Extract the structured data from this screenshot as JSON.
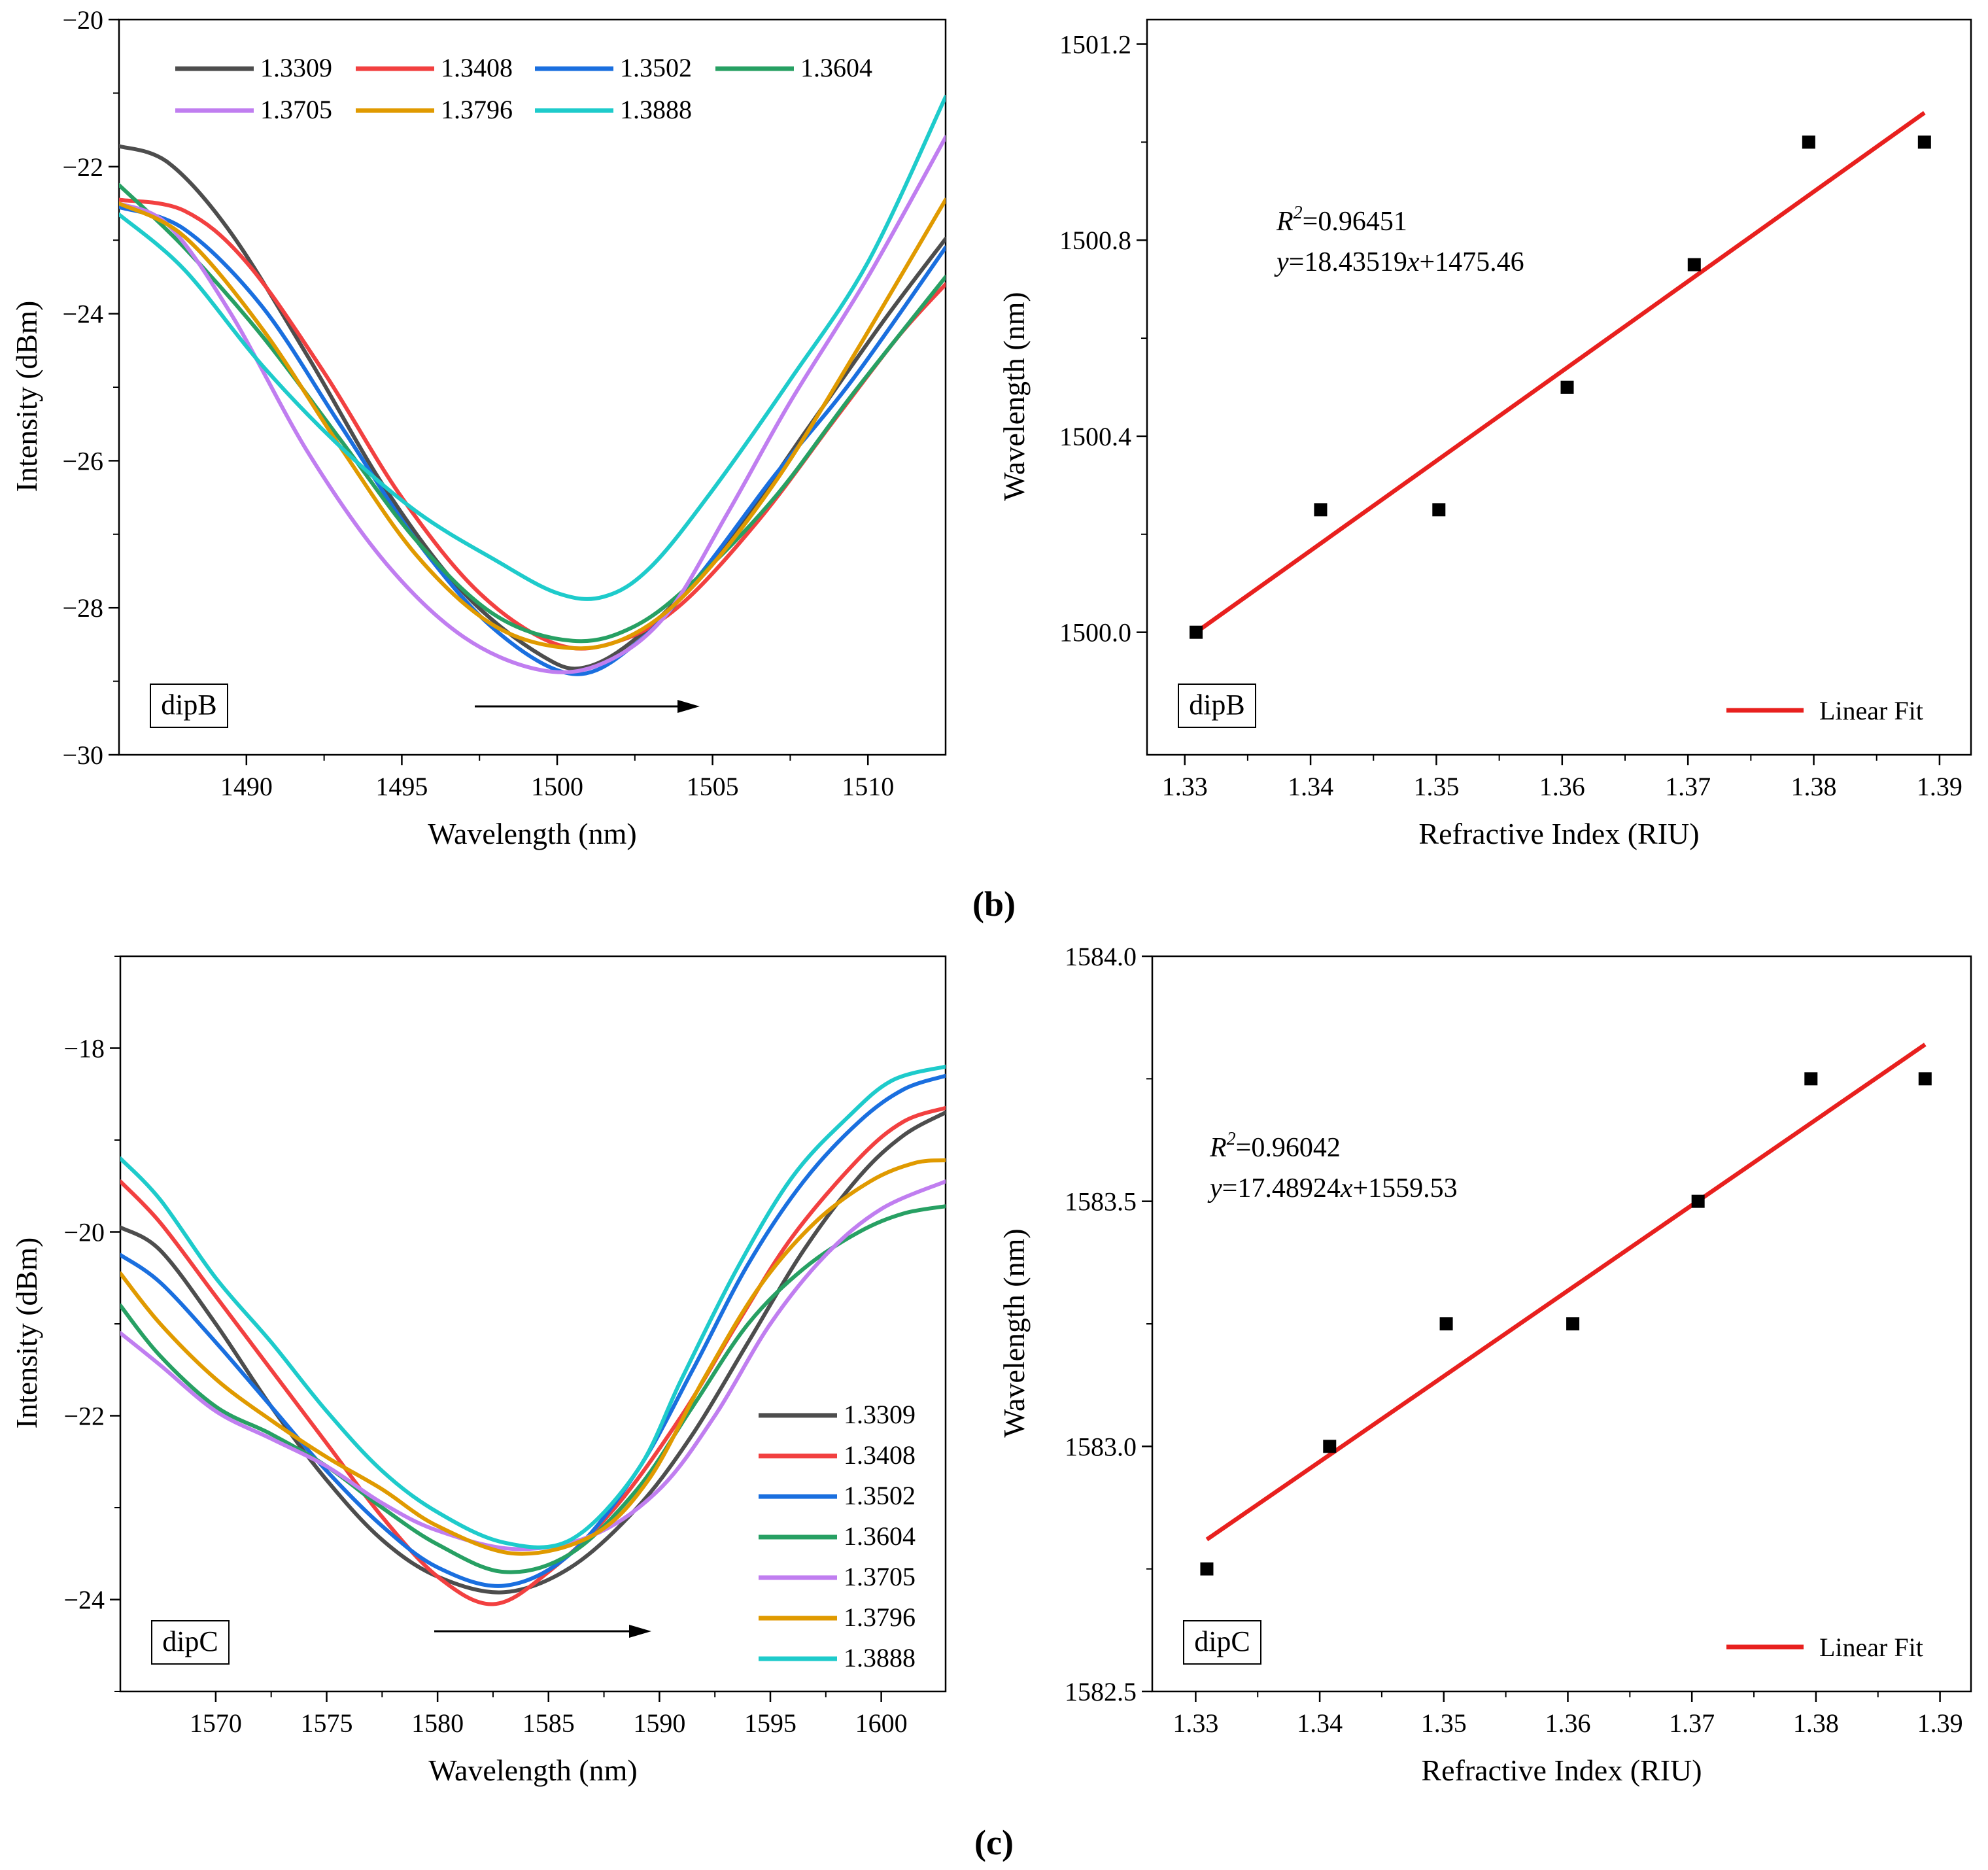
{
  "figure": {
    "captions": {
      "b": "(b)",
      "c": "(c)"
    }
  },
  "colors": {
    "1.3309": "#4d4d4d",
    "1.3408": "#f24040",
    "1.3502": "#1a6fdf",
    "1.3604": "#27a063",
    "1.3705": "#c07ef0",
    "1.3796": "#e09a00",
    "1.3888": "#1ecbcb",
    "fit": "#e8201e",
    "points": "#000000"
  },
  "chart_data": [
    {
      "id": "b-left",
      "type": "line",
      "title": "",
      "xlabel": "Wavelength (nm)",
      "ylabel": "Intensity (dBm)",
      "xlim": [
        1485.9,
        1512.5
      ],
      "ylim": [
        -30,
        -20
      ],
      "xticks": [
        1490,
        1495,
        1500,
        1505,
        1510
      ],
      "yticks": [
        -30,
        -28,
        -26,
        -24,
        -22,
        -20
      ],
      "tag": "dipB",
      "legend_position": "top",
      "series": [
        {
          "name": "1.3309",
          "points": [
            [
              1485.9,
              -21.72
            ],
            [
              1487.5,
              -21.95
            ],
            [
              1489.5,
              -22.9
            ],
            [
              1492,
              -24.6
            ],
            [
              1494.5,
              -26.4
            ],
            [
              1497,
              -27.8
            ],
            [
              1499.5,
              -28.65
            ],
            [
              1501,
              -28.8
            ],
            [
              1503,
              -28.25
            ],
            [
              1505.5,
              -27.1
            ],
            [
              1508,
              -25.6
            ],
            [
              1510.5,
              -24.1
            ],
            [
              1512.5,
              -22.98
            ]
          ]
        },
        {
          "name": "1.3408",
          "points": [
            [
              1485.9,
              -22.45
            ],
            [
              1488,
              -22.6
            ],
            [
              1490,
              -23.3
            ],
            [
              1492.5,
              -24.8
            ],
            [
              1495,
              -26.5
            ],
            [
              1497.5,
              -27.8
            ],
            [
              1500,
              -28.5
            ],
            [
              1502,
              -28.45
            ],
            [
              1504,
              -27.95
            ],
            [
              1506.5,
              -26.8
            ],
            [
              1509,
              -25.4
            ],
            [
              1511,
              -24.3
            ],
            [
              1512.5,
              -23.6
            ]
          ]
        },
        {
          "name": "1.3502",
          "points": [
            [
              1485.9,
              -22.55
            ],
            [
              1488,
              -22.85
            ],
            [
              1490.5,
              -23.9
            ],
            [
              1493,
              -25.5
            ],
            [
              1495.5,
              -27.1
            ],
            [
              1498,
              -28.3
            ],
            [
              1500.5,
              -28.9
            ],
            [
              1502.5,
              -28.5
            ],
            [
              1504.5,
              -27.6
            ],
            [
              1507,
              -26.2
            ],
            [
              1509.5,
              -24.9
            ],
            [
              1512.5,
              -23.1
            ]
          ]
        },
        {
          "name": "1.3604",
          "points": [
            [
              1485.9,
              -22.25
            ],
            [
              1488,
              -23.1
            ],
            [
              1490.5,
              -24.3
            ],
            [
              1493,
              -25.7
            ],
            [
              1495.5,
              -27.1
            ],
            [
              1498,
              -28.1
            ],
            [
              1500.5,
              -28.45
            ],
            [
              1502.5,
              -28.25
            ],
            [
              1504.5,
              -27.6
            ],
            [
              1507,
              -26.5
            ],
            [
              1509.5,
              -25.1
            ],
            [
              1512.5,
              -23.5
            ]
          ]
        },
        {
          "name": "1.3705",
          "points": [
            [
              1485.9,
              -22.5
            ],
            [
              1487.5,
              -22.8
            ],
            [
              1489.5,
              -24.0
            ],
            [
              1492,
              -25.9
            ],
            [
              1494.5,
              -27.4
            ],
            [
              1497,
              -28.4
            ],
            [
              1499.5,
              -28.85
            ],
            [
              1501.5,
              -28.75
            ],
            [
              1503.5,
              -28.1
            ],
            [
              1505.5,
              -26.7
            ],
            [
              1507.5,
              -25.2
            ],
            [
              1510,
              -23.5
            ],
            [
              1512.5,
              -21.6
            ]
          ]
        },
        {
          "name": "1.3796",
          "points": [
            [
              1485.9,
              -22.5
            ],
            [
              1488,
              -22.95
            ],
            [
              1490.5,
              -24.2
            ],
            [
              1493,
              -25.8
            ],
            [
              1495.5,
              -27.3
            ],
            [
              1498,
              -28.25
            ],
            [
              1500.5,
              -28.55
            ],
            [
              1502.5,
              -28.35
            ],
            [
              1504.5,
              -27.65
            ],
            [
              1507,
              -26.3
            ],
            [
              1509.5,
              -24.6
            ],
            [
              1512.5,
              -22.45
            ]
          ]
        },
        {
          "name": "1.3888",
          "points": [
            [
              1485.9,
              -22.65
            ],
            [
              1488,
              -23.4
            ],
            [
              1490.5,
              -24.7
            ],
            [
              1493,
              -25.8
            ],
            [
              1495.5,
              -26.7
            ],
            [
              1498,
              -27.35
            ],
            [
              1500,
              -27.8
            ],
            [
              1501.5,
              -27.85
            ],
            [
              1503,
              -27.45
            ],
            [
              1505,
              -26.4
            ],
            [
              1507.5,
              -24.9
            ],
            [
              1510,
              -23.3
            ],
            [
              1512.5,
              -21.05
            ]
          ]
        }
      ]
    },
    {
      "id": "b-right",
      "type": "scatter",
      "xlabel": "Refractive Index (RIU)",
      "ylabel": "Wavelength (nm)",
      "xlim": [
        1.327,
        1.3925
      ],
      "ylim": [
        1499.75,
        1501.25
      ],
      "xticks": [
        1.33,
        1.34,
        1.35,
        1.36,
        1.37,
        1.38,
        1.39
      ],
      "yticks": [
        1500.0,
        1500.4,
        1500.8,
        1501.2
      ],
      "ytick_labels": [
        "1500.0",
        "1500.4",
        "1500.8",
        "1501.2"
      ],
      "tag": "dipB",
      "x": [
        1.3309,
        1.3408,
        1.3502,
        1.3604,
        1.3705,
        1.3796,
        1.3888
      ],
      "y": [
        1500.0,
        1500.25,
        1500.25,
        1500.5,
        1500.75,
        1501.0,
        1501.0
      ],
      "fit": {
        "slope": 18.43519,
        "intercept": 1475.46,
        "x_range": [
          1.3309,
          1.3888
        ],
        "y_range": [
          1500.0,
          1501.06
        ]
      },
      "r2_prefix": "R",
      "r2_sup": "2",
      "r2_value": "=0.96451",
      "eq_y": "y",
      "eq_mid": "=18.43519",
      "eq_x": "x",
      "eq_end": "+1475.46",
      "legend": "Linear Fit",
      "legend_position": "bottom-right"
    },
    {
      "id": "c-left",
      "type": "line",
      "xlabel": "Wavelength (nm)",
      "ylabel": "Intensity (dBm)",
      "xlim": [
        1565.7,
        1602.9
      ],
      "ylim": [
        -25,
        -17
      ],
      "xticks": [
        1570,
        1575,
        1580,
        1585,
        1590,
        1595,
        1600
      ],
      "yticks": [
        -24,
        -22,
        -20,
        -18
      ],
      "tag": "dipC",
      "legend_position": "bottom-right",
      "series": [
        {
          "name": "1.3309",
          "points": [
            [
              1565.7,
              -19.95
            ],
            [
              1567.5,
              -20.2
            ],
            [
              1570,
              -21.0
            ],
            [
              1572.5,
              -21.9
            ],
            [
              1575,
              -22.7
            ],
            [
              1577.5,
              -23.35
            ],
            [
              1580,
              -23.75
            ],
            [
              1583,
              -23.92
            ],
            [
              1586,
              -23.65
            ],
            [
              1589,
              -23.0
            ],
            [
              1591.5,
              -22.2
            ],
            [
              1594,
              -21.2
            ],
            [
              1596.5,
              -20.2
            ],
            [
              1599,
              -19.4
            ],
            [
              1601,
              -18.95
            ],
            [
              1602.9,
              -18.7
            ]
          ]
        },
        {
          "name": "1.3408",
          "points": [
            [
              1565.7,
              -19.45
            ],
            [
              1567.5,
              -19.9
            ],
            [
              1570,
              -20.7
            ],
            [
              1572.5,
              -21.5
            ],
            [
              1575,
              -22.3
            ],
            [
              1577.5,
              -23.1
            ],
            [
              1580,
              -23.75
            ],
            [
              1582.5,
              -24.05
            ],
            [
              1585,
              -23.7
            ],
            [
              1588,
              -23.0
            ],
            [
              1591,
              -22.0
            ],
            [
              1593.5,
              -21.0
            ],
            [
              1596,
              -20.05
            ],
            [
              1599,
              -19.2
            ],
            [
              1601,
              -18.8
            ],
            [
              1602.9,
              -18.65
            ]
          ]
        },
        {
          "name": "1.3502",
          "points": [
            [
              1565.7,
              -20.25
            ],
            [
              1567.5,
              -20.55
            ],
            [
              1570,
              -21.2
            ],
            [
              1572.5,
              -21.9
            ],
            [
              1575,
              -22.6
            ],
            [
              1577.5,
              -23.2
            ],
            [
              1580,
              -23.65
            ],
            [
              1583,
              -23.85
            ],
            [
              1586,
              -23.5
            ],
            [
              1589,
              -22.6
            ],
            [
              1591.5,
              -21.5
            ],
            [
              1594,
              -20.35
            ],
            [
              1596.5,
              -19.45
            ],
            [
              1599,
              -18.8
            ],
            [
              1601,
              -18.45
            ],
            [
              1602.9,
              -18.3
            ]
          ]
        },
        {
          "name": "1.3604",
          "points": [
            [
              1565.7,
              -20.8
            ],
            [
              1567.5,
              -21.35
            ],
            [
              1570,
              -21.9
            ],
            [
              1572.5,
              -22.2
            ],
            [
              1575,
              -22.55
            ],
            [
              1577.5,
              -23.0
            ],
            [
              1580,
              -23.4
            ],
            [
              1583,
              -23.7
            ],
            [
              1586,
              -23.5
            ],
            [
              1589,
              -22.8
            ],
            [
              1591.5,
              -21.9
            ],
            [
              1594,
              -21.0
            ],
            [
              1596.5,
              -20.4
            ],
            [
              1599,
              -20.0
            ],
            [
              1601,
              -19.8
            ],
            [
              1602.9,
              -19.72
            ]
          ]
        },
        {
          "name": "1.3705",
          "points": [
            [
              1565.7,
              -21.1
            ],
            [
              1567.5,
              -21.45
            ],
            [
              1570,
              -21.95
            ],
            [
              1572.5,
              -22.25
            ],
            [
              1575,
              -22.55
            ],
            [
              1577.5,
              -22.95
            ],
            [
              1580,
              -23.25
            ],
            [
              1583.5,
              -23.45
            ],
            [
              1587,
              -23.3
            ],
            [
              1590,
              -22.8
            ],
            [
              1592.5,
              -22.0
            ],
            [
              1595,
              -21.0
            ],
            [
              1597.5,
              -20.25
            ],
            [
              1600,
              -19.75
            ],
            [
              1602.9,
              -19.45
            ]
          ]
        },
        {
          "name": "1.3796",
          "points": [
            [
              1565.7,
              -20.45
            ],
            [
              1567.5,
              -21.0
            ],
            [
              1570,
              -21.6
            ],
            [
              1572.5,
              -22.05
            ],
            [
              1575,
              -22.45
            ],
            [
              1577.5,
              -22.8
            ],
            [
              1580,
              -23.2
            ],
            [
              1583.5,
              -23.5
            ],
            [
              1587,
              -23.3
            ],
            [
              1589.5,
              -22.7
            ],
            [
              1592,
              -21.6
            ],
            [
              1594.5,
              -20.6
            ],
            [
              1597,
              -19.9
            ],
            [
              1599.5,
              -19.45
            ],
            [
              1601.5,
              -19.25
            ],
            [
              1602.9,
              -19.22
            ]
          ]
        },
        {
          "name": "1.3888",
          "points": [
            [
              1565.7,
              -19.2
            ],
            [
              1567.5,
              -19.65
            ],
            [
              1570,
              -20.5
            ],
            [
              1572.5,
              -21.2
            ],
            [
              1575,
              -21.95
            ],
            [
              1577.5,
              -22.6
            ],
            [
              1580,
              -23.05
            ],
            [
              1583,
              -23.38
            ],
            [
              1586,
              -23.35
            ],
            [
              1589,
              -22.6
            ],
            [
              1591,
              -21.6
            ],
            [
              1593.5,
              -20.4
            ],
            [
              1596,
              -19.4
            ],
            [
              1598.5,
              -18.75
            ],
            [
              1600.5,
              -18.35
            ],
            [
              1602.9,
              -18.2
            ]
          ]
        }
      ]
    },
    {
      "id": "c-right",
      "type": "scatter",
      "xlabel": "Refractive Index (RIU)",
      "ylabel": "Wavelength (nm)",
      "xlim": [
        1.3265,
        1.3925
      ],
      "ylim": [
        1582.5,
        1584.0
      ],
      "xticks": [
        1.33,
        1.34,
        1.35,
        1.36,
        1.37,
        1.38,
        1.39
      ],
      "yticks": [
        1582.5,
        1583.0,
        1583.5,
        1584.0
      ],
      "ytick_labels": [
        "1582.5",
        "1583.0",
        "1583.5",
        "1584.0"
      ],
      "tag": "dipC",
      "x": [
        1.3309,
        1.3408,
        1.3502,
        1.3604,
        1.3705,
        1.3796,
        1.3888
      ],
      "y": [
        1582.75,
        1583.0,
        1583.25,
        1583.25,
        1583.5,
        1583.75,
        1583.75
      ],
      "fit": {
        "slope": 17.48924,
        "intercept": 1559.53,
        "x_range": [
          1.3309,
          1.3888
        ],
        "y_range": [
          1582.81,
          1583.82
        ]
      },
      "r2_prefix": "R",
      "r2_sup": "2",
      "r2_value": "=0.96042",
      "eq_y": "y",
      "eq_mid": "=17.48924",
      "eq_x": "x",
      "eq_end": "+1559.53",
      "legend": "Linear Fit",
      "legend_position": "bottom-right"
    }
  ]
}
